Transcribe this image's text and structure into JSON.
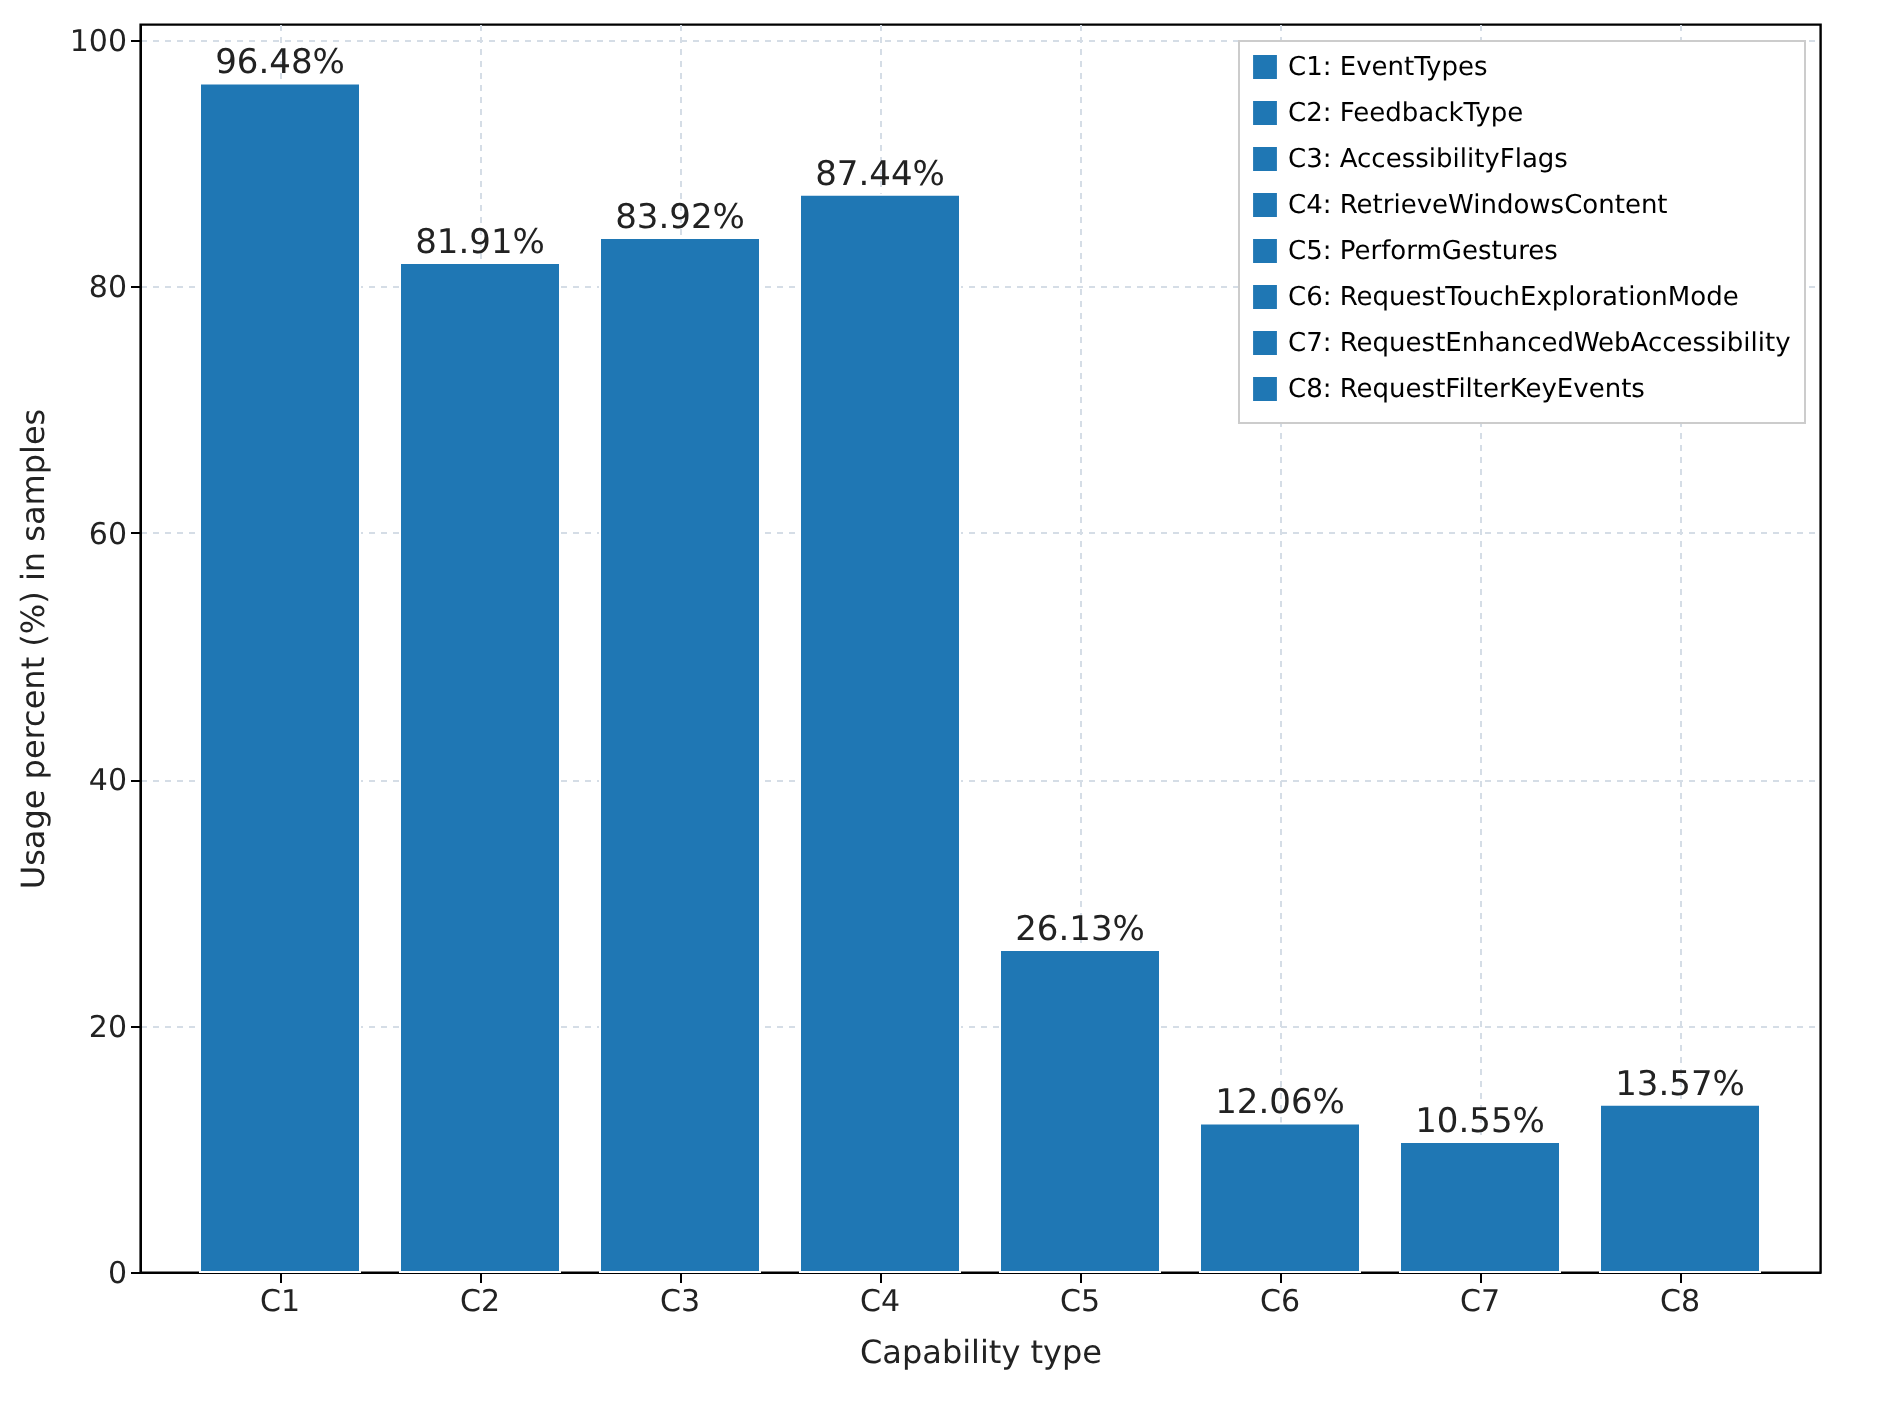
{
  "chart_data": {
    "type": "bar",
    "xlabel": "Capability type",
    "ylabel": "Usage percent (%) in samples",
    "categories": [
      "C1",
      "C2",
      "C3",
      "C4",
      "C5",
      "C6",
      "C7",
      "C8"
    ],
    "series": [
      {
        "name": "C1: EventTypes",
        "color": "#1f77b4",
        "values": [
          96.48,
          null,
          null,
          null,
          null,
          null,
          null,
          null
        ],
        "value_labels": [
          "96.48%",
          null,
          null,
          null,
          null,
          null,
          null,
          null
        ]
      },
      {
        "name": "C2: FeedbackType",
        "color": "#1f77b4",
        "values": [
          null,
          81.91,
          null,
          null,
          null,
          null,
          null,
          null
        ],
        "value_labels": [
          null,
          "81.91%",
          null,
          null,
          null,
          null,
          null,
          null
        ]
      },
      {
        "name": "C3: AccessibilityFlags",
        "color": "#1f77b4",
        "values": [
          null,
          null,
          83.92,
          null,
          null,
          null,
          null,
          null
        ],
        "value_labels": [
          null,
          null,
          "83.92%",
          null,
          null,
          null,
          null,
          null
        ]
      },
      {
        "name": "C4: RetrieveWindowsContent",
        "color": "#1f77b4",
        "values": [
          null,
          null,
          null,
          87.44,
          null,
          null,
          null,
          null
        ],
        "value_labels": [
          null,
          null,
          null,
          "87.44%",
          null,
          null,
          null,
          null
        ]
      },
      {
        "name": "C5: PerformGestures",
        "color": "#1f77b4",
        "values": [
          null,
          null,
          null,
          null,
          26.13,
          null,
          null,
          null
        ],
        "value_labels": [
          null,
          null,
          null,
          null,
          "26.13%",
          null,
          null,
          null
        ]
      },
      {
        "name": "C6: RequestTouchExplorationMode",
        "color": "#1f77b4",
        "values": [
          null,
          null,
          null,
          null,
          null,
          12.06,
          null,
          null
        ],
        "value_labels": [
          null,
          null,
          null,
          null,
          null,
          "12.06%",
          null,
          null
        ]
      },
      {
        "name": "C7: RequestEnhancedWebAccessibility",
        "color": "#1f77b4",
        "values": [
          null,
          null,
          null,
          null,
          null,
          null,
          10.55,
          null
        ],
        "value_labels": [
          null,
          null,
          null,
          null,
          null,
          null,
          "10.55%",
          null
        ]
      },
      {
        "name": "C8: RequestFilterKeyEvents",
        "color": "#1f77b4",
        "values": [
          null,
          null,
          null,
          null,
          null,
          null,
          null,
          13.57
        ],
        "value_labels": [
          null,
          null,
          null,
          null,
          null,
          null,
          null,
          "13.57%"
        ]
      }
    ],
    "ylim": [
      0,
      101.3
    ],
    "yticks": [
      0,
      20,
      40,
      60,
      80,
      100
    ],
    "grid": true,
    "legend": "top right"
  }
}
